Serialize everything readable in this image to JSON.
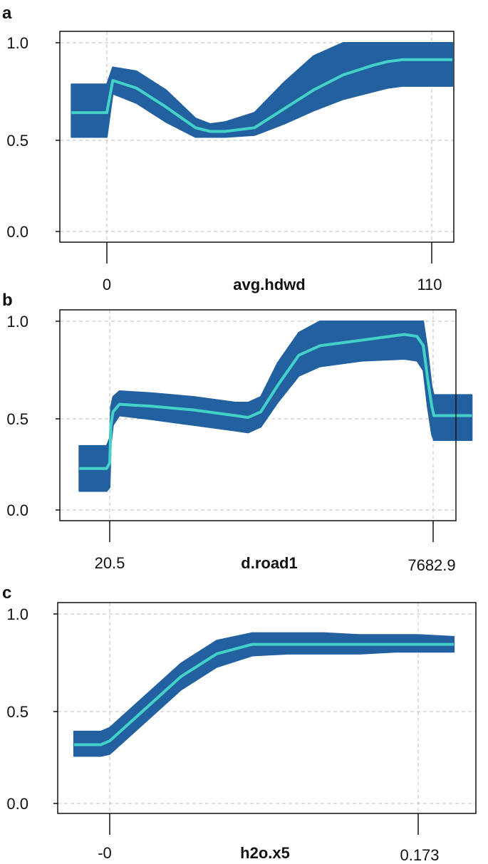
{
  "colors": {
    "band": "#2260a0",
    "line": "#44d2c8",
    "frame": "#111111",
    "grid": "#bdbdbd"
  },
  "chart_data": [
    {
      "panel": "a",
      "type": "line",
      "xlabel": "avg.hdwd",
      "x_tick_labels": [
        "0",
        "110"
      ],
      "y_ticks": [
        "0.0",
        "0.5",
        "1.0"
      ],
      "ylim": [
        0,
        1
      ],
      "x": [
        -12,
        -1,
        0,
        2,
        10,
        20,
        30,
        35,
        40,
        50,
        60,
        70,
        80,
        90,
        95,
        100,
        110,
        117
      ],
      "values": [
        0.63,
        0.63,
        0.63,
        0.8,
        0.76,
        0.66,
        0.55,
        0.53,
        0.53,
        0.55,
        0.65,
        0.75,
        0.83,
        0.88,
        0.9,
        0.91,
        0.91,
        0.91
      ],
      "lower": [
        0.5,
        0.5,
        0.5,
        0.73,
        0.68,
        0.58,
        0.5,
        0.5,
        0.5,
        0.51,
        0.57,
        0.64,
        0.7,
        0.74,
        0.76,
        0.77,
        0.77,
        0.77
      ],
      "upper": [
        0.78,
        0.78,
        0.78,
        0.87,
        0.85,
        0.75,
        0.6,
        0.57,
        0.58,
        0.63,
        0.79,
        0.93,
        1.0,
        1.0,
        1.0,
        1.0,
        1.0,
        1.0
      ]
    },
    {
      "panel": "b",
      "type": "line",
      "xlabel": "d.road1",
      "x_tick_labels": [
        "20.5",
        "7682.9"
      ],
      "y_ticks": [
        "0.0",
        "0.5",
        "1.0"
      ],
      "ylim": [
        0,
        1
      ],
      "x": [
        -700,
        -50,
        20.5,
        50,
        100,
        250,
        1000,
        2000,
        3000,
        3300,
        3600,
        4000,
        4500,
        5000,
        6000,
        7000,
        7300,
        7450,
        7550,
        7650,
        7700,
        8000,
        8600
      ],
      "values": [
        0.22,
        0.22,
        0.25,
        0.45,
        0.52,
        0.56,
        0.55,
        0.53,
        0.5,
        0.49,
        0.52,
        0.66,
        0.82,
        0.87,
        0.9,
        0.93,
        0.92,
        0.87,
        0.7,
        0.55,
        0.5,
        0.5,
        0.5
      ],
      "lower": [
        0.1,
        0.1,
        0.12,
        0.35,
        0.45,
        0.5,
        0.48,
        0.45,
        0.42,
        0.41,
        0.44,
        0.57,
        0.71,
        0.76,
        0.79,
        0.8,
        0.79,
        0.74,
        0.55,
        0.4,
        0.37,
        0.37,
        0.37
      ],
      "upper": [
        0.34,
        0.34,
        0.38,
        0.55,
        0.6,
        0.63,
        0.62,
        0.6,
        0.57,
        0.57,
        0.6,
        0.78,
        0.94,
        1.0,
        1.0,
        1.0,
        1.0,
        1.0,
        0.85,
        0.65,
        0.61,
        0.61,
        0.61
      ]
    },
    {
      "panel": "c",
      "type": "line",
      "xlabel": "h2o.x5",
      "x_tick_labels": [
        "-0",
        "0.173"
      ],
      "y_ticks": [
        "0.0",
        "0.5",
        "1.0"
      ],
      "ylim": [
        0,
        1
      ],
      "x": [
        -0.02,
        -0.005,
        0,
        0.02,
        0.04,
        0.06,
        0.08,
        0.1,
        0.12,
        0.14,
        0.16,
        0.173,
        0.193
      ],
      "values": [
        0.31,
        0.31,
        0.33,
        0.5,
        0.67,
        0.79,
        0.84,
        0.84,
        0.84,
        0.84,
        0.84,
        0.84,
        0.84
      ],
      "lower": [
        0.25,
        0.25,
        0.26,
        0.43,
        0.6,
        0.72,
        0.78,
        0.79,
        0.79,
        0.79,
        0.8,
        0.8,
        0.8
      ],
      "upper": [
        0.38,
        0.38,
        0.4,
        0.57,
        0.74,
        0.86,
        0.9,
        0.9,
        0.9,
        0.89,
        0.89,
        0.89,
        0.88
      ]
    }
  ]
}
